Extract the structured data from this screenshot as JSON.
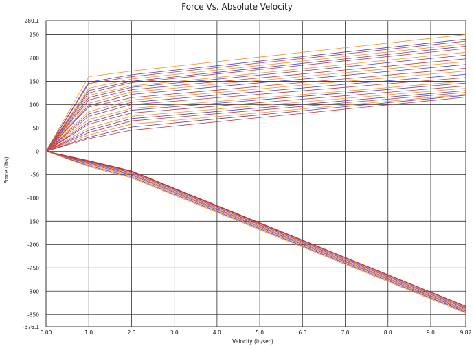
{
  "chart_data": {
    "type": "line",
    "title": "Force Vs. Absolute Velocity",
    "xlabel": "Velocity (in/sec)",
    "ylabel": "Force (lbs)",
    "xlim": [
      0.0,
      9.82
    ],
    "ylim": [
      -376.1,
      280.1
    ],
    "x_ticks": [
      "0.00",
      "1.0",
      "2.0",
      "3.0",
      "4.0",
      "5.0",
      "6.0",
      "7.0",
      "8.0",
      "9.0",
      "9.82"
    ],
    "x_tick_values": [
      0,
      1,
      2,
      3,
      4,
      5,
      6,
      7,
      8,
      9,
      9.82
    ],
    "y_ticks": [
      "280.1",
      "250",
      "200",
      "150",
      "100",
      "50",
      "0",
      "-50",
      "-100",
      "-150",
      "-200",
      "-250",
      "-300",
      "-350",
      "-376.1"
    ],
    "y_tick_values": [
      280.1,
      250,
      200,
      150,
      100,
      50,
      0,
      -50,
      -100,
      -150,
      -200,
      -250,
      -300,
      -350,
      -376.1
    ],
    "grid": true,
    "legend": "none",
    "x": [
      0,
      1,
      2,
      9.82
    ],
    "series": [
      {
        "color": "#ff8c1a",
        "values": [
          0,
          160,
          172,
          250
        ]
      },
      {
        "color": "#4444cc",
        "values": [
          0,
          148,
          164,
          240
        ]
      },
      {
        "color": "#cc3333",
        "values": [
          0,
          145,
          160,
          236
        ]
      },
      {
        "color": "#ff8c1a",
        "values": [
          0,
          135,
          155,
          230
        ]
      },
      {
        "color": "#4444cc",
        "values": [
          0,
          130,
          150,
          225
        ]
      },
      {
        "color": "#cc3333",
        "values": [
          0,
          125,
          147,
          220
        ]
      },
      {
        "color": "#ff8c1a",
        "values": [
          0,
          120,
          140,
          212
        ]
      },
      {
        "color": "#4444cc",
        "values": [
          0,
          115,
          137,
          206
        ]
      },
      {
        "color": "#cc3333",
        "values": [
          0,
          110,
          132,
          198
        ]
      },
      {
        "color": "#ff8c1a",
        "values": [
          0,
          103,
          127,
          192
        ]
      },
      {
        "color": "#4444cc",
        "values": [
          0,
          98,
          122,
          186
        ]
      },
      {
        "color": "#cc3333",
        "values": [
          0,
          95,
          115,
          178
        ]
      },
      {
        "color": "#ff8c1a",
        "values": [
          0,
          85,
          110,
          172
        ]
      },
      {
        "color": "#4444cc",
        "values": [
          0,
          80,
          105,
          165
        ]
      },
      {
        "color": "#cc3333",
        "values": [
          0,
          75,
          100,
          158
        ]
      },
      {
        "color": "#ff8c1a",
        "values": [
          0,
          68,
          92,
          150
        ]
      },
      {
        "color": "#4444cc",
        "values": [
          0,
          62,
          88,
          146
        ]
      },
      {
        "color": "#cc3333",
        "values": [
          0,
          58,
          82,
          140
        ]
      },
      {
        "color": "#ff8c1a",
        "values": [
          0,
          50,
          75,
          135
        ]
      },
      {
        "color": "#4444cc",
        "values": [
          0,
          45,
          70,
          130
        ]
      },
      {
        "color": "#cc3333",
        "values": [
          0,
          40,
          65,
          126
        ]
      },
      {
        "color": "#ff8c1a",
        "values": [
          0,
          35,
          58,
          122
        ]
      },
      {
        "color": "#4444cc",
        "values": [
          0,
          30,
          52,
          120
        ]
      },
      {
        "color": "#cc3333",
        "values": [
          0,
          27,
          45,
          116
        ]
      },
      {
        "color": "#cc3333",
        "values": [
          0,
          -20,
          -42,
          -332
        ]
      },
      {
        "color": "#993333",
        "values": [
          0,
          -21,
          -43,
          -333
        ]
      },
      {
        "color": "#cc3333",
        "values": [
          0,
          -22,
          -44,
          -335
        ]
      },
      {
        "color": "#4444cc",
        "values": [
          0,
          -23,
          -46,
          -337
        ]
      },
      {
        "color": "#ff8c1a",
        "values": [
          0,
          -24,
          -47,
          -338
        ]
      },
      {
        "color": "#cc3333",
        "values": [
          0,
          -25,
          -49,
          -340
        ]
      },
      {
        "color": "#4444cc",
        "values": [
          0,
          -27,
          -51,
          -342
        ]
      },
      {
        "color": "#ff8c1a",
        "values": [
          0,
          -29,
          -53,
          -344
        ]
      },
      {
        "color": "#4444cc",
        "values": [
          0,
          -31,
          -55,
          -345
        ]
      },
      {
        "color": "#ff8c1a",
        "values": [
          0,
          -33,
          -57,
          -347
        ]
      }
    ]
  }
}
